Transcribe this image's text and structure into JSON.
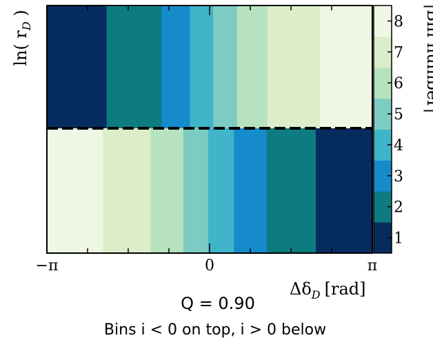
{
  "chart_data": {
    "type": "heatmap",
    "x_axis": {
      "label": "Δδ",
      "label_subscript": "D",
      "label_unit": "[rad]",
      "range": [
        -3.14159,
        3.14159
      ],
      "ticks": [
        {
          "value": -3.14159,
          "label": "−π"
        },
        {
          "value": 0,
          "label": "0"
        },
        {
          "value": 3.14159,
          "label": "π"
        }
      ]
    },
    "y_axis": {
      "label": "ln( r",
      "label_subscript": "D",
      "label_close": " )"
    },
    "colorbar": {
      "label": "|Bin number|",
      "ticks": [
        "1",
        "2",
        "3",
        "4",
        "5",
        "6",
        "7",
        "8"
      ],
      "colors": [
        "#062b5f",
        "#0e7b80",
        "#168bcb",
        "#40b4c8",
        "#7dccc4",
        "#b7e2bf",
        "#dbeec9",
        "#eef7e4"
      ]
    },
    "top_half": {
      "description_label": "i < 0",
      "bins": [
        {
          "x_start": -3.14159,
          "x_end": -1.99,
          "abs_bin": 1
        },
        {
          "x_start": -1.99,
          "x_end": -0.93,
          "abs_bin": 2
        },
        {
          "x_start": -0.93,
          "x_end": -0.38,
          "abs_bin": 3
        },
        {
          "x_start": -0.38,
          "x_end": 0.07,
          "abs_bin": 4
        },
        {
          "x_start": 0.07,
          "x_end": 0.53,
          "abs_bin": 5
        },
        {
          "x_start": 0.53,
          "x_end": 1.12,
          "abs_bin": 6
        },
        {
          "x_start": 1.12,
          "x_end": 2.13,
          "abs_bin": 7
        },
        {
          "x_start": 2.13,
          "x_end": 3.14159,
          "abs_bin": 8
        }
      ]
    },
    "bottom_half": {
      "description_label": "i > 0",
      "bins": [
        {
          "x_start": -3.14159,
          "x_end": -2.06,
          "abs_bin": 8
        },
        {
          "x_start": -2.06,
          "x_end": -1.14,
          "abs_bin": 7
        },
        {
          "x_start": -1.14,
          "x_end": -0.51,
          "abs_bin": 6
        },
        {
          "x_start": -0.51,
          "x_end": -0.03,
          "abs_bin": 5
        },
        {
          "x_start": -0.03,
          "x_end": 0.47,
          "abs_bin": 4
        },
        {
          "x_start": 0.47,
          "x_end": 1.1,
          "abs_bin": 3
        },
        {
          "x_start": 1.1,
          "x_end": 2.05,
          "abs_bin": 2
        },
        {
          "x_start": 2.05,
          "x_end": 3.14159,
          "abs_bin": 1
        }
      ]
    },
    "divider": "dashed",
    "annotation": "Q = 0.90",
    "caption": "Bins i < 0 on top, i > 0 below"
  }
}
